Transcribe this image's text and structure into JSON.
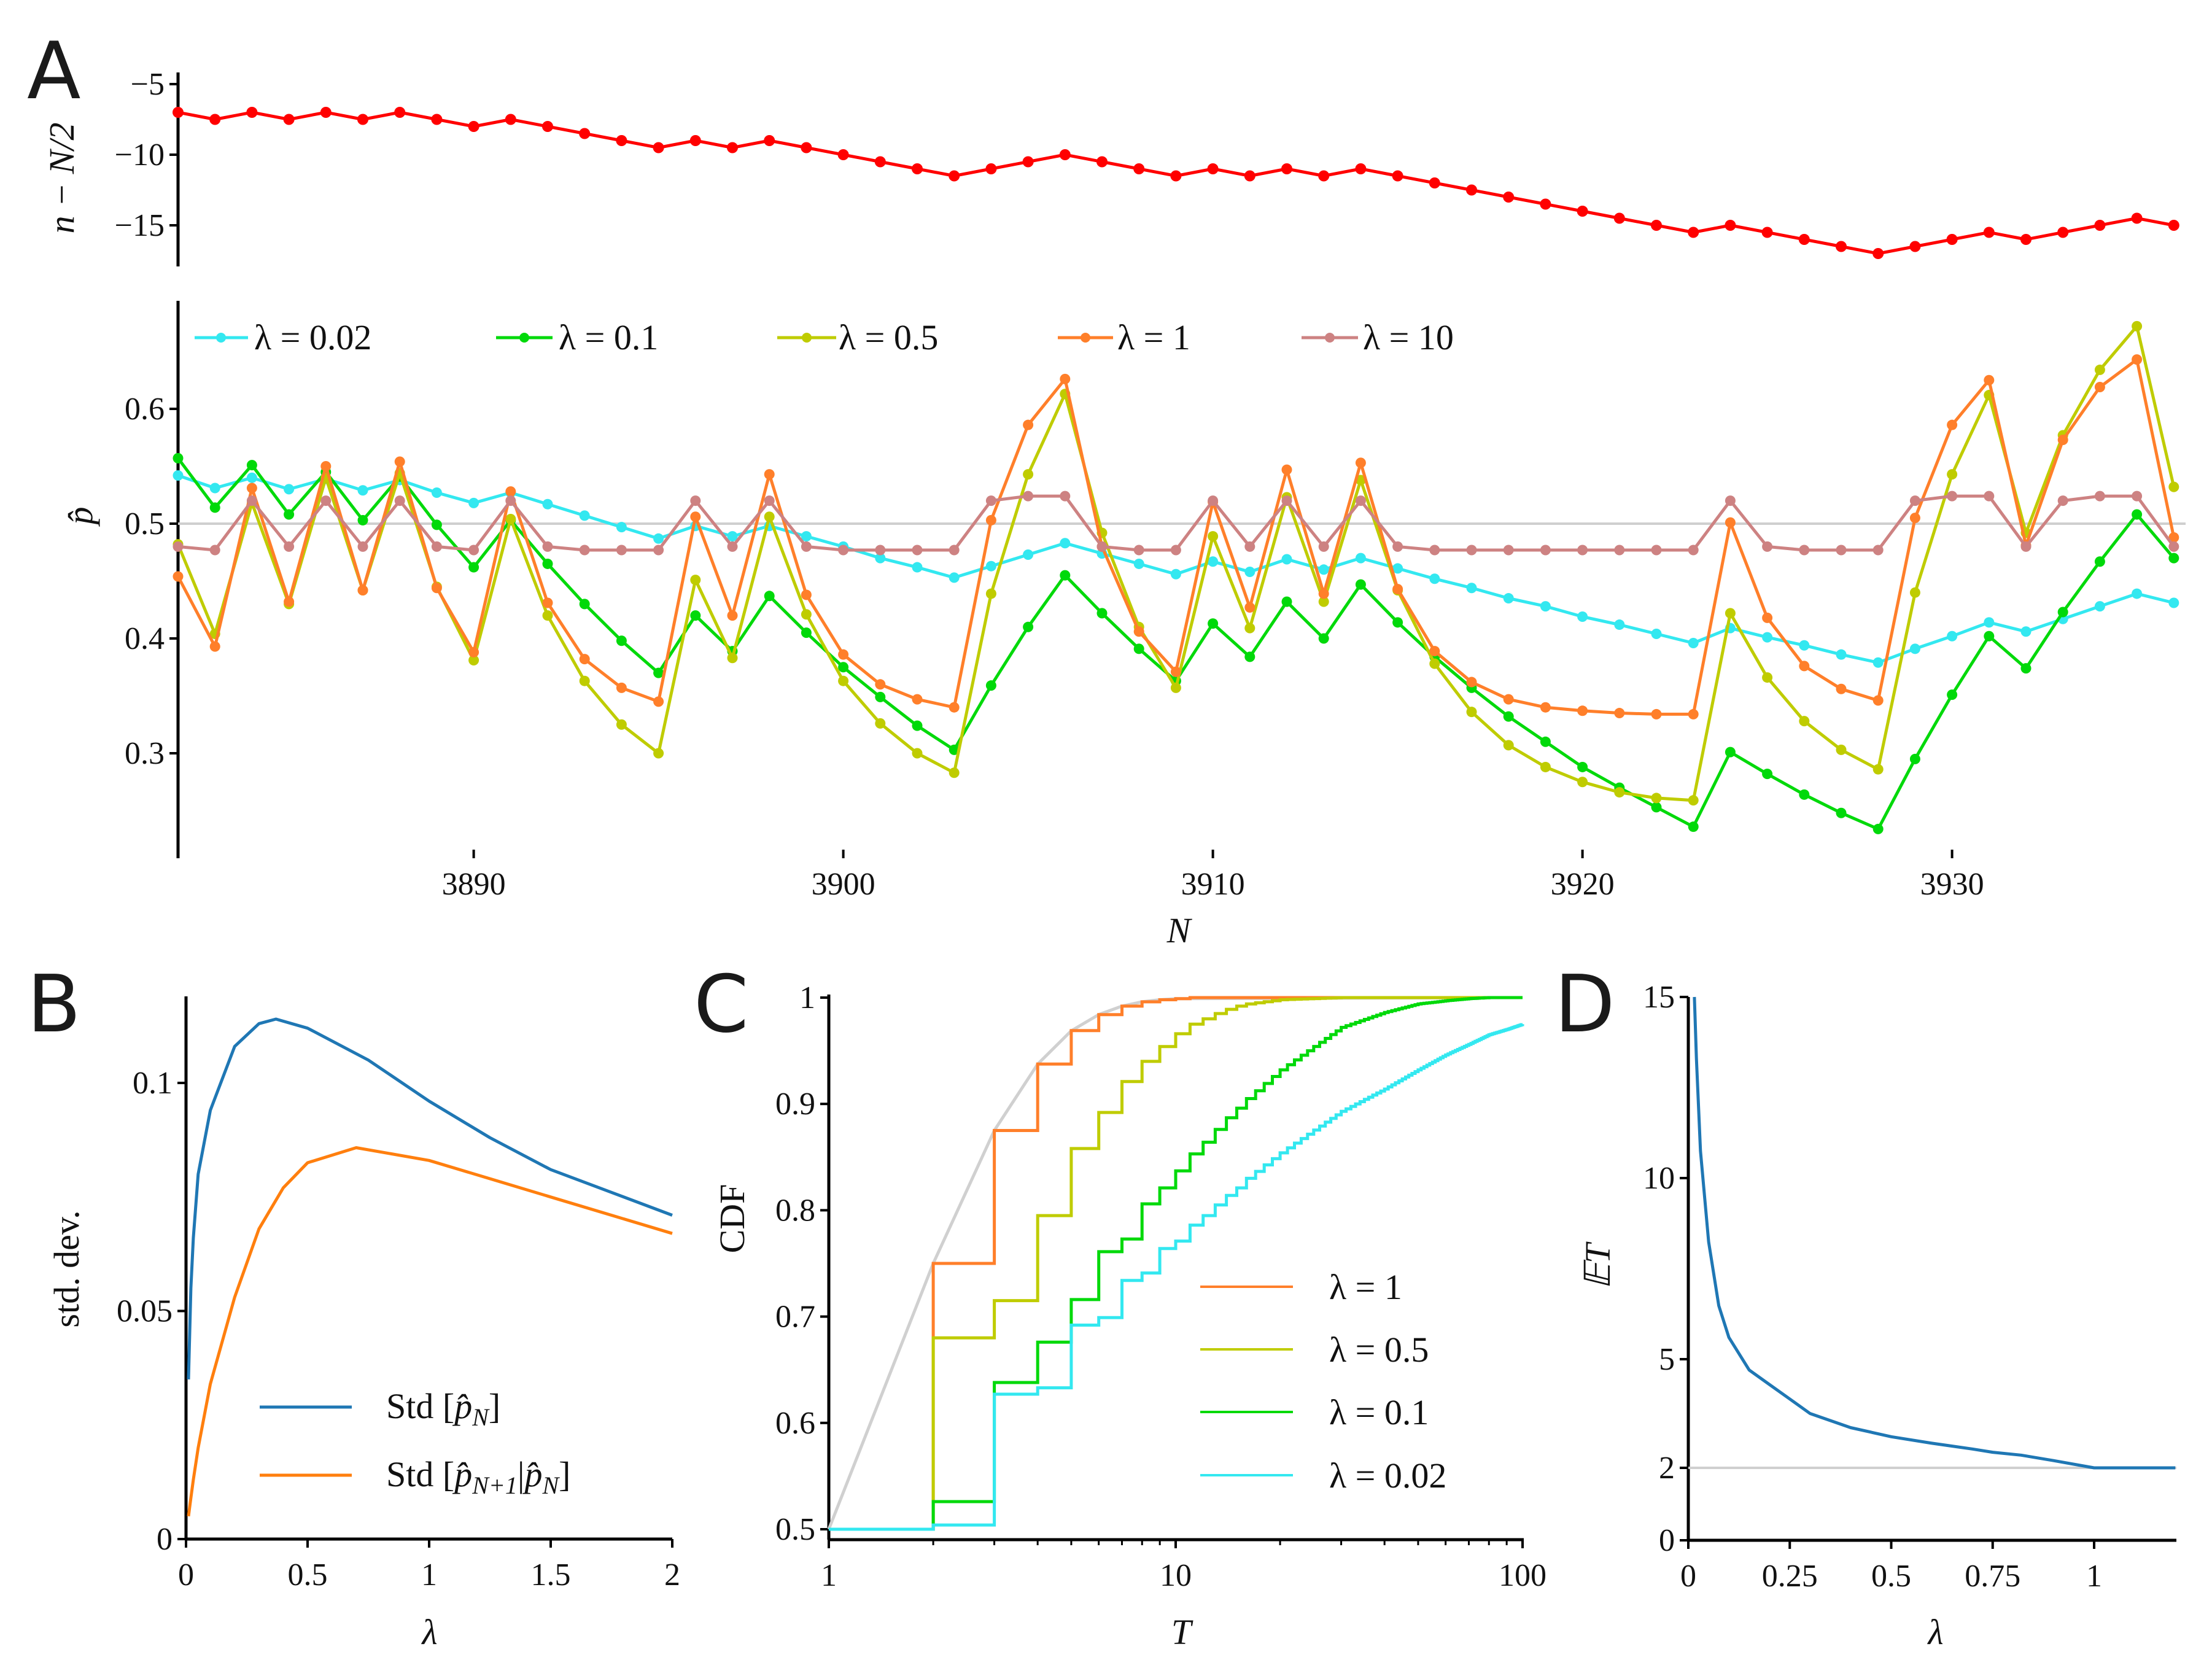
{
  "figure": {
    "panel_labels": {
      "A": "A",
      "B": "B",
      "C": "C",
      "D": "D"
    }
  },
  "chart_data": [
    {
      "panel": "A-top",
      "type": "line",
      "ylabel": "n − N/2",
      "x": [
        3882,
        3883,
        3884,
        3885,
        3886,
        3887,
        3888,
        3889,
        3890,
        3891,
        3892,
        3893,
        3894,
        3895,
        3896,
        3897,
        3898,
        3899,
        3900,
        3901,
        3902,
        3903,
        3904,
        3905,
        3906,
        3907,
        3908,
        3909,
        3910,
        3911,
        3912,
        3913,
        3914,
        3915,
        3916,
        3917,
        3918,
        3919,
        3920,
        3921,
        3922,
        3923,
        3924,
        3925,
        3926,
        3927,
        3928,
        3929,
        3930,
        3931,
        3932,
        3933,
        3934,
        3935,
        3936
      ],
      "series": [
        {
          "name": "n − N/2",
          "color": "#ff0000",
          "values": [
            -7,
            -7.5,
            -7,
            -7.5,
            -7,
            -7.5,
            -7,
            -7.5,
            -8,
            -7.5,
            -8,
            -8.5,
            -9,
            -9.5,
            -9,
            -9.5,
            -9,
            -9.5,
            -10,
            -10.5,
            -11,
            -11.5,
            -11,
            -10.5,
            -10,
            -10.5,
            -11,
            -11.5,
            -11,
            -11.5,
            -11,
            -11.5,
            -11,
            -11.5,
            -12,
            -12.5,
            -13,
            -13.5,
            -14,
            -14.5,
            -15,
            -15.5,
            -15,
            -15.5,
            -16,
            -16.5,
            -17,
            -16.5,
            -16,
            -15.5,
            -16,
            -15.5,
            -15,
            -14.5,
            -15
          ]
        }
      ],
      "yticks": [
        -5,
        -10,
        -15
      ],
      "ytick_labels": [
        "−5",
        "−10",
        "−15"
      ],
      "xlim": [
        3882,
        3936
      ],
      "ylim": [
        -18.5,
        -4.2
      ]
    },
    {
      "panel": "A-bottom",
      "type": "line",
      "ylabel": "p̂",
      "xlabel": "N",
      "x": [
        3882,
        3883,
        3884,
        3885,
        3886,
        3887,
        3888,
        3889,
        3890,
        3891,
        3892,
        3893,
        3894,
        3895,
        3896,
        3897,
        3898,
        3899,
        3900,
        3901,
        3902,
        3903,
        3904,
        3905,
        3906,
        3907,
        3908,
        3909,
        3910,
        3911,
        3912,
        3913,
        3914,
        3915,
        3916,
        3917,
        3918,
        3919,
        3920,
        3921,
        3922,
        3923,
        3924,
        3925,
        3926,
        3927,
        3928,
        3929,
        3930,
        3931,
        3932,
        3933,
        3934,
        3935,
        3936
      ],
      "series": [
        {
          "name": "λ = 0.02",
          "color": "#33e8f0",
          "values": [
            0.542,
            0.531,
            0.54,
            0.53,
            0.539,
            0.529,
            0.538,
            0.527,
            0.518,
            0.527,
            0.517,
            0.507,
            0.497,
            0.487,
            0.498,
            0.489,
            0.498,
            0.489,
            0.48,
            0.47,
            0.462,
            0.453,
            0.463,
            0.473,
            0.483,
            0.474,
            0.465,
            0.456,
            0.467,
            0.458,
            0.469,
            0.46,
            0.47,
            0.461,
            0.452,
            0.444,
            0.435,
            0.428,
            0.419,
            0.412,
            0.404,
            0.396,
            0.409,
            0.401,
            0.394,
            0.386,
            0.379,
            0.391,
            0.402,
            0.414,
            0.406,
            0.417,
            0.428,
            0.439,
            0.431
          ]
        },
        {
          "name": "λ = 0.1",
          "color": "#00d90a",
          "values": [
            0.557,
            0.514,
            0.551,
            0.508,
            0.545,
            0.503,
            0.541,
            0.499,
            0.462,
            0.503,
            0.465,
            0.43,
            0.398,
            0.37,
            0.42,
            0.389,
            0.437,
            0.405,
            0.375,
            0.349,
            0.324,
            0.303,
            0.359,
            0.41,
            0.455,
            0.422,
            0.391,
            0.363,
            0.413,
            0.384,
            0.432,
            0.4,
            0.447,
            0.414,
            0.384,
            0.357,
            0.332,
            0.31,
            0.288,
            0.27,
            0.253,
            0.236,
            0.301,
            0.282,
            0.264,
            0.248,
            0.234,
            0.295,
            0.351,
            0.402,
            0.374,
            0.423,
            0.467,
            0.508,
            0.47
          ]
        },
        {
          "name": "λ = 0.5",
          "color": "#bfcc00",
          "values": [
            0.482,
            0.404,
            0.518,
            0.43,
            0.54,
            0.442,
            0.544,
            0.445,
            0.381,
            0.504,
            0.42,
            0.363,
            0.325,
            0.3,
            0.451,
            0.383,
            0.506,
            0.421,
            0.363,
            0.326,
            0.3,
            0.283,
            0.439,
            0.543,
            0.613,
            0.492,
            0.41,
            0.357,
            0.489,
            0.409,
            0.523,
            0.432,
            0.538,
            0.442,
            0.378,
            0.336,
            0.307,
            0.288,
            0.275,
            0.266,
            0.261,
            0.259,
            0.422,
            0.366,
            0.328,
            0.303,
            0.286,
            0.44,
            0.543,
            0.612,
            0.492,
            0.577,
            0.634,
            0.672,
            0.532
          ]
        },
        {
          "name": "λ = 1",
          "color": "#ff7f2a",
          "values": [
            0.454,
            0.393,
            0.531,
            0.432,
            0.55,
            0.442,
            0.554,
            0.444,
            0.388,
            0.528,
            0.431,
            0.382,
            0.357,
            0.345,
            0.506,
            0.42,
            0.543,
            0.438,
            0.386,
            0.36,
            0.347,
            0.34,
            0.503,
            0.586,
            0.626,
            0.48,
            0.406,
            0.371,
            0.519,
            0.427,
            0.547,
            0.439,
            0.553,
            0.443,
            0.389,
            0.362,
            0.347,
            0.34,
            0.337,
            0.335,
            0.334,
            0.334,
            0.501,
            0.418,
            0.376,
            0.356,
            0.346,
            0.505,
            0.586,
            0.625,
            0.481,
            0.573,
            0.619,
            0.643,
            0.488
          ]
        },
        {
          "name": "λ = 10",
          "color": "#cd8282",
          "values": [
            0.48,
            0.477,
            0.52,
            0.48,
            0.52,
            0.48,
            0.52,
            0.48,
            0.477,
            0.52,
            0.48,
            0.477,
            0.477,
            0.477,
            0.52,
            0.48,
            0.52,
            0.48,
            0.477,
            0.477,
            0.477,
            0.477,
            0.52,
            0.524,
            0.524,
            0.48,
            0.477,
            0.477,
            0.52,
            0.48,
            0.52,
            0.48,
            0.52,
            0.48,
            0.477,
            0.477,
            0.477,
            0.477,
            0.477,
            0.477,
            0.477,
            0.477,
            0.52,
            0.48,
            0.477,
            0.477,
            0.477,
            0.52,
            0.524,
            0.524,
            0.48,
            0.52,
            0.524,
            0.524,
            0.48
          ]
        }
      ],
      "reference_line": 0.5,
      "xticks": [
        3890,
        3900,
        3910,
        3920,
        3930
      ],
      "xtick_labels": [
        "3890",
        "3900",
        "3910",
        "3920",
        "3930"
      ],
      "yticks": [
        0.3,
        0.4,
        0.5,
        0.6
      ],
      "ytick_labels": [
        "0.3",
        "0.4",
        "0.5",
        "0.6"
      ],
      "xlim": [
        3882,
        3936
      ],
      "ylim": [
        0.209,
        0.694
      ],
      "legend": "top"
    },
    {
      "panel": "B",
      "type": "line",
      "ylabel": "std. dev.",
      "xlabel": "λ",
      "series": [
        {
          "name_parts": [
            "Std [",
            "p̂",
            "N",
            "]"
          ],
          "color": "#1f77b4",
          "x": [
            0.01,
            0.02,
            0.03,
            0.05,
            0.1,
            0.2,
            0.3,
            0.37,
            0.5,
            0.75,
            1,
            1.25,
            1.5,
            1.75,
            2
          ],
          "values": [
            0.035,
            0.055,
            0.066,
            0.08,
            0.094,
            0.108,
            0.113,
            0.114,
            0.112,
            0.105,
            0.096,
            0.088,
            0.081,
            0.076,
            0.071
          ]
        },
        {
          "name_parts": [
            "Std [",
            "p̂",
            "N+1",
            "|",
            "p̂",
            "N",
            "]"
          ],
          "color": "#ff7f0e",
          "x": [
            0.01,
            0.02,
            0.03,
            0.05,
            0.1,
            0.2,
            0.3,
            0.4,
            0.5,
            0.7,
            1,
            1.25,
            1.5,
            1.75,
            2
          ],
          "values": [
            0.005,
            0.009,
            0.013,
            0.02,
            0.034,
            0.053,
            0.068,
            0.077,
            0.0825,
            0.0858,
            0.083,
            0.079,
            0.075,
            0.071,
            0.067
          ]
        }
      ],
      "xticks": [
        0,
        0.5,
        1,
        1.5,
        2
      ],
      "xtick_labels": [
        "0",
        "0.5",
        "1",
        "1.5",
        "2"
      ],
      "yticks": [
        0,
        0.05,
        0.1
      ],
      "ytick_labels": [
        "0",
        "0.05",
        "0.1"
      ],
      "xlim": [
        0,
        2
      ],
      "ylim": [
        0,
        0.119
      ],
      "legend": "bottom-right"
    },
    {
      "panel": "C",
      "type": "line",
      "ylabel": "CDF",
      "xlabel": "T",
      "xscale": "log",
      "envelope": {
        "color": "#d0d0d0",
        "x": [
          1,
          2,
          3,
          4,
          5,
          6,
          7,
          8,
          9,
          10,
          100
        ],
        "values": [
          0.5,
          0.75,
          0.875,
          0.9375,
          0.96875,
          0.984,
          0.992,
          0.996,
          0.998,
          0.999,
          1
        ]
      },
      "series": [
        {
          "name": "λ = 1",
          "color": "#ff7f2a",
          "x": [
            1,
            2,
            3,
            4,
            5,
            6,
            7,
            8,
            9,
            10,
            11,
            12,
            13,
            14,
            15,
            16,
            20,
            30,
            40,
            50,
            60,
            70,
            80,
            90,
            100
          ],
          "values": [
            0.5,
            0.75,
            0.875,
            0.9375,
            0.969,
            0.984,
            0.992,
            0.996,
            0.998,
            0.999,
            1,
            1,
            1,
            1,
            1,
            1,
            1,
            1,
            1,
            1,
            1,
            1,
            1,
            1,
            1
          ]
        },
        {
          "name": "λ = 0.5",
          "color": "#bfcc00",
          "x": [
            1,
            2,
            3,
            4,
            5,
            6,
            7,
            8,
            9,
            10,
            11,
            12,
            13,
            14,
            15,
            16,
            20,
            30,
            40,
            50,
            60,
            70,
            80,
            90,
            100
          ],
          "values": [
            0.5,
            0.68,
            0.715,
            0.795,
            0.858,
            0.892,
            0.921,
            0.94,
            0.954,
            0.966,
            0.975,
            0.98,
            0.985,
            0.989,
            0.992,
            0.994,
            0.998,
            1,
            1,
            1,
            1,
            1,
            1,
            1,
            1
          ]
        },
        {
          "name": "λ = 0.1",
          "color": "#00d90a",
          "x": [
            1,
            2,
            3,
            4,
            5,
            6,
            7,
            8,
            9,
            10,
            11,
            12,
            13,
            14,
            15,
            16,
            20,
            30,
            40,
            50,
            60,
            70,
            80,
            90,
            100
          ],
          "values": [
            0.5,
            0.526,
            0.638,
            0.676,
            0.716,
            0.761,
            0.773,
            0.806,
            0.821,
            0.837,
            0.853,
            0.864,
            0.876,
            0.887,
            0.896,
            0.905,
            0.932,
            0.972,
            0.986,
            0.994,
            0.997,
            0.999,
            1,
            1,
            1
          ]
        },
        {
          "name": "λ = 0.02",
          "color": "#33e8f0",
          "x": [
            1,
            2,
            3,
            4,
            5,
            6,
            7,
            8,
            9,
            10,
            11,
            12,
            13,
            14,
            15,
            16,
            20,
            30,
            40,
            50,
            60,
            70,
            80,
            90,
            100
          ],
          "values": [
            0.5,
            0.504,
            0.627,
            0.633,
            0.692,
            0.699,
            0.734,
            0.741,
            0.764,
            0.771,
            0.786,
            0.795,
            0.805,
            0.814,
            0.821,
            0.83,
            0.854,
            0.893,
            0.914,
            0.932,
            0.946,
            0.956,
            0.965,
            0.97,
            0.975
          ]
        }
      ],
      "xticks": [
        1,
        10,
        100
      ],
      "xtick_labels": [
        "1",
        "10",
        "100"
      ],
      "yticks": [
        0.5,
        0.6,
        0.7,
        0.8,
        0.9,
        1
      ],
      "ytick_labels": [
        "0.5",
        "0.6",
        "0.7",
        "0.8",
        "0.9",
        "1"
      ],
      "xlim": [
        1,
        100
      ],
      "ylim": [
        0.5,
        1
      ],
      "legend": "bottom-right"
    },
    {
      "panel": "D",
      "type": "line",
      "ylabel": "𝔼T",
      "xlabel": "λ",
      "reference_line": 2,
      "series": [
        {
          "name": "ET",
          "color": "#1f77b4",
          "x": [
            0.015,
            0.02,
            0.03,
            0.05,
            0.075,
            0.1,
            0.15,
            0.2,
            0.25,
            0.3,
            0.4,
            0.5,
            0.6,
            0.7,
            0.75,
            0.82,
            0.9,
            1.0,
            1.2
          ],
          "values": [
            15,
            13.3,
            10.75,
            8.24,
            6.48,
            5.6,
            4.7,
            4.3,
            3.9,
            3.5,
            3.11,
            2.86,
            2.68,
            2.52,
            2.43,
            2.35,
            2.2,
            2,
            2
          ]
        }
      ],
      "xticks": [
        0,
        0.25,
        0.5,
        0.75,
        1
      ],
      "xtick_labels": [
        "0",
        "0.25",
        "0.5",
        "0.75",
        "1"
      ],
      "yticks": [
        0,
        2,
        5,
        10,
        15
      ],
      "ytick_labels": [
        "0",
        "2",
        "5",
        "10",
        "15"
      ],
      "xlim": [
        0,
        1.2
      ],
      "ylim": [
        0,
        15
      ]
    }
  ]
}
